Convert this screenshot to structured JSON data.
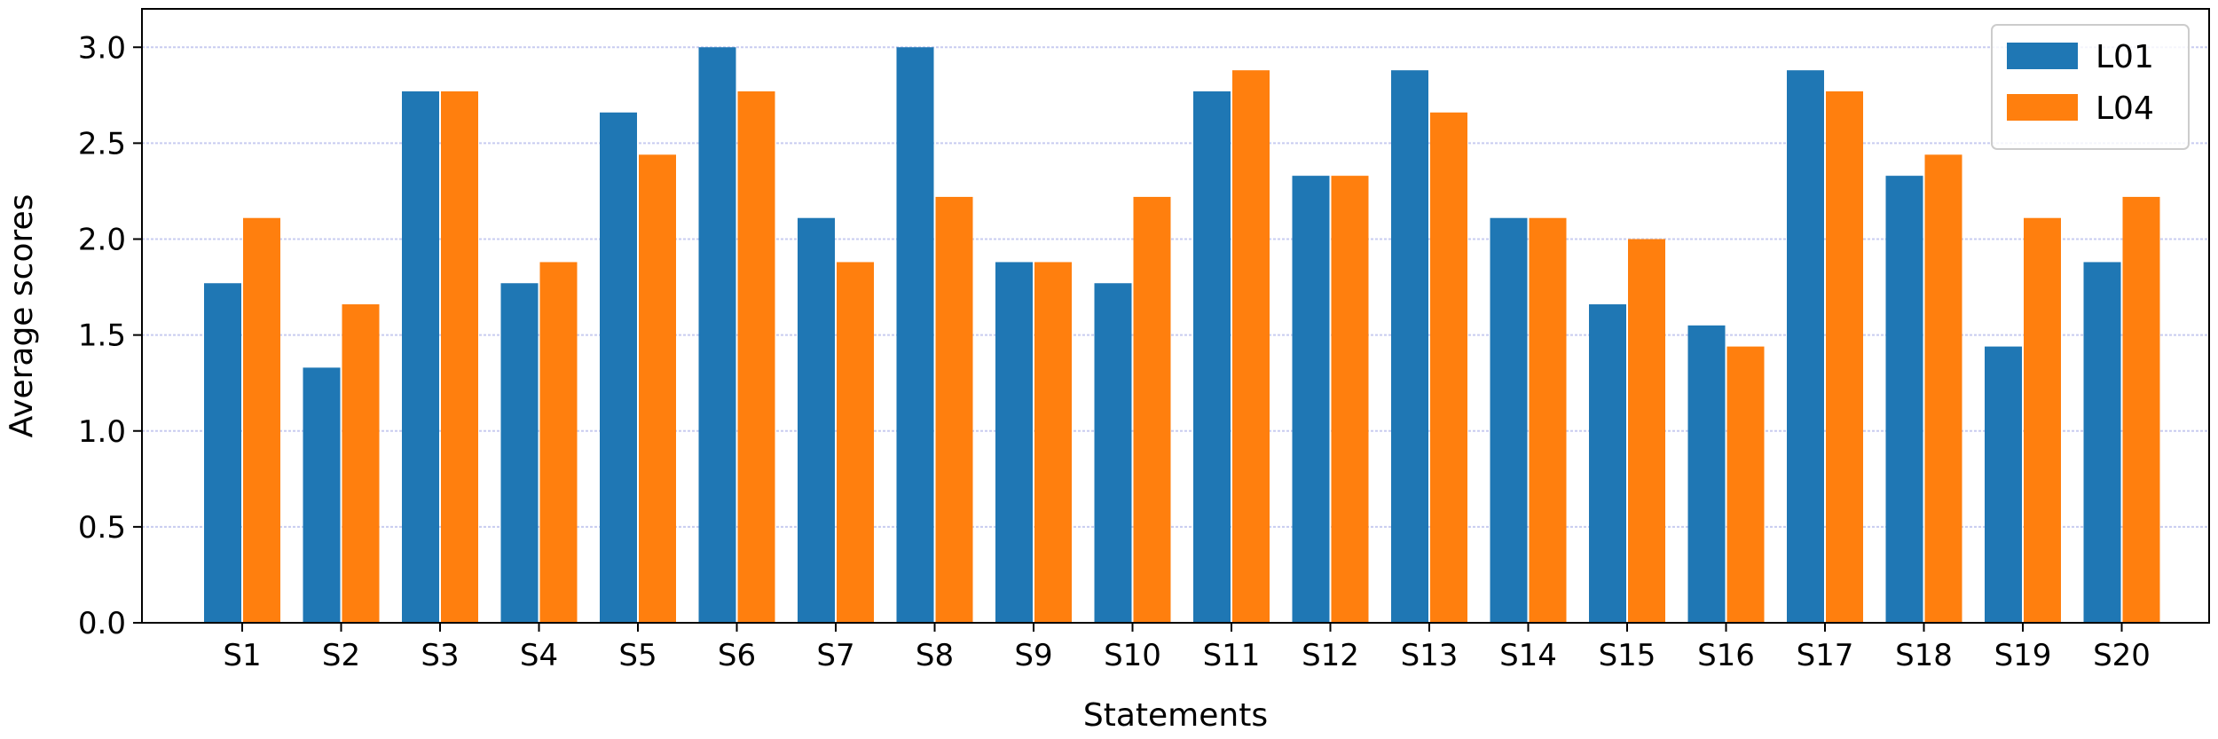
{
  "chart_data": {
    "type": "bar",
    "title": "",
    "xlabel": "Statements",
    "ylabel": "Average scores",
    "ylim": [
      0,
      3.2
    ],
    "yticks": [
      "0.0",
      "0.5",
      "1.0",
      "1.5",
      "2.0",
      "2.5",
      "3.0"
    ],
    "grid": "horizontal",
    "legend_position": "top-right",
    "categories": [
      "S1",
      "S2",
      "S3",
      "S4",
      "S5",
      "S6",
      "S7",
      "S8",
      "S9",
      "S10",
      "S11",
      "S12",
      "S13",
      "S14",
      "S15",
      "S16",
      "S17",
      "S18",
      "S19",
      "S20"
    ],
    "series": [
      {
        "name": "L01",
        "color": "#1f77b4",
        "values": [
          1.77,
          1.33,
          2.77,
          1.77,
          2.66,
          3.0,
          2.11,
          3.0,
          1.88,
          1.77,
          2.77,
          2.33,
          2.88,
          2.11,
          1.66,
          1.55,
          2.88,
          2.33,
          1.44,
          1.88
        ]
      },
      {
        "name": "L04",
        "color": "#ff7f0e",
        "values": [
          2.11,
          1.66,
          2.77,
          1.88,
          2.44,
          2.77,
          1.88,
          2.22,
          1.88,
          2.22,
          2.88,
          2.33,
          2.66,
          2.11,
          2.0,
          1.44,
          2.77,
          2.44,
          2.11,
          2.22
        ]
      }
    ],
    "grid_color": "#c8ccf0"
  }
}
